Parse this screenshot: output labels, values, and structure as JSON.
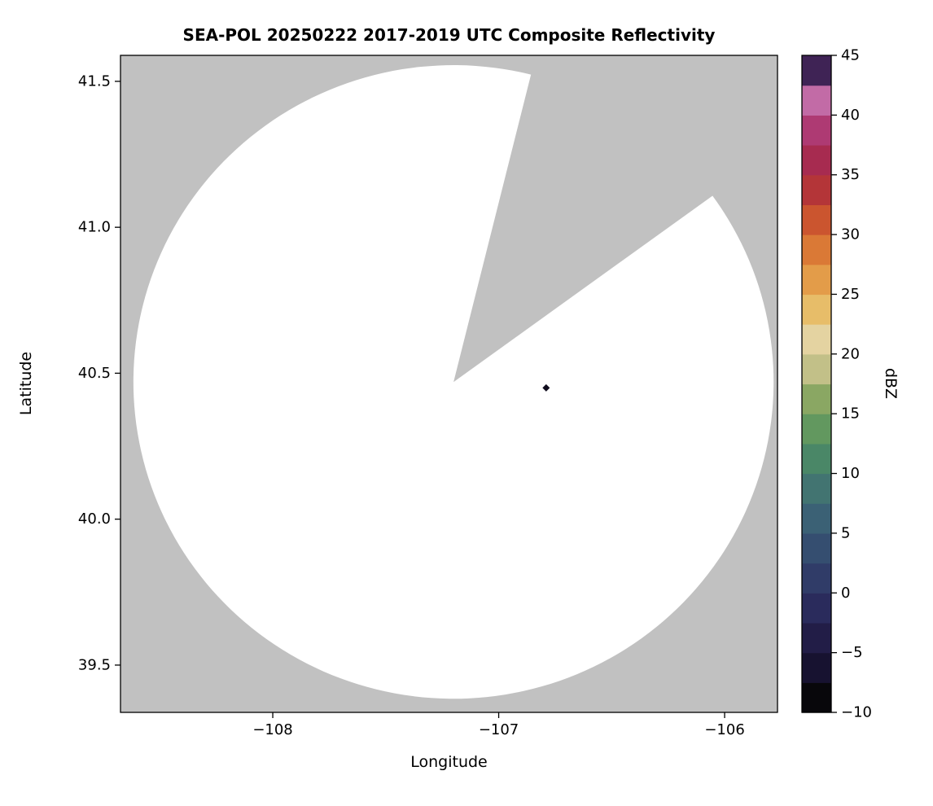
{
  "chart_data": {
    "type": "heatmap",
    "title": "SEA-POL 20250222 2017-2019 UTC Composite Reflectivity",
    "xlabel": "Longitude",
    "ylabel": "Latitude",
    "xlim": [
      -108.674,
      -105.766
    ],
    "ylim": [
      39.338,
      41.589
    ],
    "xticks": [
      -108,
      -107,
      -106
    ],
    "yticks": [
      39.5,
      40.0,
      40.5,
      41.0,
      41.5
    ],
    "grid": false,
    "background_outside_coverage": "#c1c1c1",
    "coverage_fill": "#ffffff",
    "radar": {
      "center_lon": -107.2,
      "center_lat": 40.47,
      "radius_km": 120,
      "missing_sector_azimuth_deg": [
        14,
        54
      ]
    },
    "echoes": [
      {
        "lon": -106.79,
        "lat": 40.45,
        "color": "#110d1e"
      }
    ],
    "colorbar": {
      "label": "dBZ",
      "min": -10,
      "max": 45,
      "ticks": [
        -10,
        -5,
        0,
        5,
        10,
        15,
        20,
        25,
        30,
        35,
        40,
        45
      ],
      "band_step_dbz": 2.5,
      "colors_bottom_to_top": [
        "#08070b",
        "#171230",
        "#221d47",
        "#2a2b5c",
        "#303c68",
        "#354e70",
        "#3b6175",
        "#427471",
        "#4a8767",
        "#62985f",
        "#8aa763",
        "#c2c088",
        "#e4d3a1",
        "#e7bd69",
        "#e39c49",
        "#da7936",
        "#cb552f",
        "#b43538",
        "#a72b50",
        "#ae3a73",
        "#c26ba6",
        "#3f2355"
      ]
    }
  }
}
